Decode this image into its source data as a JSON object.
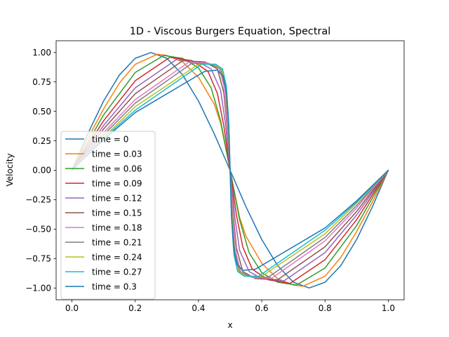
{
  "chart_data": {
    "type": "line",
    "title": "1D - Viscous Burgers Equation, Spectral",
    "xlabel": "x",
    "ylabel": "Velocity",
    "xlim": [
      -0.05,
      1.05
    ],
    "ylim": [
      -1.1,
      1.1
    ],
    "xticks": [
      "0.0",
      "0.2",
      "0.4",
      "0.6",
      "0.8",
      "1.0"
    ],
    "yticks": [
      "−1.00",
      "−0.75",
      "−0.50",
      "−0.25",
      "0.00",
      "0.25",
      "0.50",
      "0.75",
      "1.00"
    ],
    "grid": false,
    "legend_position": "center-left",
    "series": [
      {
        "name": "time = 0",
        "color": "#1f77b4",
        "x": [
          0,
          0.05,
          0.1,
          0.15,
          0.2,
          0.25,
          0.3,
          0.35,
          0.4,
          0.45,
          0.5,
          0.55,
          0.6,
          0.65,
          0.7,
          0.75,
          0.8,
          0.85,
          0.9,
          0.95,
          1
        ],
        "y": [
          0,
          0.309,
          0.588,
          0.809,
          0.951,
          1,
          0.951,
          0.809,
          0.588,
          0.309,
          0,
          -0.309,
          -0.588,
          -0.809,
          -0.951,
          -1,
          -0.951,
          -0.809,
          -0.588,
          -0.309,
          0
        ]
      },
      {
        "name": "time = 0.03",
        "color": "#ff7f0e",
        "x": [
          0,
          0.05,
          0.1,
          0.15,
          0.2,
          0.27,
          0.3,
          0.35,
          0.4,
          0.45,
          0.47,
          0.5,
          0.53,
          0.55,
          0.6,
          0.65,
          0.7,
          0.73,
          0.8,
          0.85,
          0.9,
          0.95,
          1
        ],
        "y": [
          0,
          0.27,
          0.52,
          0.74,
          0.9,
          0.985,
          0.975,
          0.92,
          0.79,
          0.56,
          0.4,
          0,
          -0.4,
          -0.56,
          -0.79,
          -0.92,
          -0.975,
          -0.985,
          -0.9,
          -0.74,
          -0.52,
          -0.27,
          0
        ]
      },
      {
        "name": "time = 0.06",
        "color": "#2ca02c",
        "x": [
          0,
          0.1,
          0.2,
          0.29,
          0.35,
          0.4,
          0.44,
          0.47,
          0.5,
          0.53,
          0.56,
          0.6,
          0.65,
          0.71,
          0.8,
          0.9,
          1
        ],
        "y": [
          0,
          0.47,
          0.83,
          0.975,
          0.95,
          0.87,
          0.7,
          0.42,
          0,
          -0.42,
          -0.7,
          -0.87,
          -0.95,
          -0.975,
          -0.83,
          -0.47,
          0
        ]
      },
      {
        "name": "time = 0.09",
        "color": "#d62728",
        "x": [
          0,
          0.1,
          0.2,
          0.31,
          0.38,
          0.43,
          0.46,
          0.48,
          0.5,
          0.52,
          0.54,
          0.57,
          0.62,
          0.69,
          0.8,
          0.9,
          1
        ],
        "y": [
          0,
          0.42,
          0.76,
          0.96,
          0.93,
          0.84,
          0.65,
          0.38,
          0,
          -0.38,
          -0.65,
          -0.84,
          -0.93,
          -0.96,
          -0.76,
          -0.42,
          0
        ]
      },
      {
        "name": "time = 0.12",
        "color": "#9467bd",
        "x": [
          0,
          0.1,
          0.2,
          0.33,
          0.4,
          0.44,
          0.47,
          0.485,
          0.5,
          0.515,
          0.53,
          0.56,
          0.6,
          0.67,
          0.8,
          0.9,
          1
        ],
        "y": [
          0,
          0.38,
          0.7,
          0.94,
          0.92,
          0.86,
          0.68,
          0.4,
          0,
          -0.4,
          -0.68,
          -0.86,
          -0.92,
          -0.94,
          -0.7,
          -0.38,
          0
        ]
      },
      {
        "name": "time = 0.15",
        "color": "#8c564b",
        "x": [
          0,
          0.1,
          0.2,
          0.35,
          0.42,
          0.46,
          0.48,
          0.49,
          0.5,
          0.51,
          0.52,
          0.54,
          0.58,
          0.65,
          0.8,
          0.9,
          1
        ],
        "y": [
          0,
          0.35,
          0.65,
          0.93,
          0.92,
          0.86,
          0.66,
          0.38,
          0,
          -0.38,
          -0.66,
          -0.86,
          -0.92,
          -0.93,
          -0.65,
          -0.35,
          0
        ]
      },
      {
        "name": "time = 0.18",
        "color": "#e377c2",
        "x": [
          0,
          0.1,
          0.2,
          0.37,
          0.43,
          0.465,
          0.48,
          0.49,
          0.5,
          0.51,
          0.52,
          0.535,
          0.57,
          0.63,
          0.8,
          0.9,
          1
        ],
        "y": [
          0,
          0.32,
          0.6,
          0.92,
          0.91,
          0.87,
          0.72,
          0.42,
          0,
          -0.42,
          -0.72,
          -0.87,
          -0.91,
          -0.92,
          -0.6,
          -0.32,
          0
        ]
      },
      {
        "name": "time = 0.21",
        "color": "#7f7f7f",
        "x": [
          0,
          0.1,
          0.2,
          0.38,
          0.44,
          0.47,
          0.485,
          0.493,
          0.5,
          0.507,
          0.515,
          0.53,
          0.56,
          0.62,
          0.8,
          0.9,
          1
        ],
        "y": [
          0,
          0.3,
          0.57,
          0.91,
          0.9,
          0.86,
          0.7,
          0.4,
          0,
          -0.4,
          -0.7,
          -0.86,
          -0.9,
          -0.91,
          -0.57,
          -0.3,
          0
        ]
      },
      {
        "name": "time = 0.24",
        "color": "#bcbd22",
        "x": [
          0,
          0.1,
          0.2,
          0.4,
          0.45,
          0.473,
          0.487,
          0.494,
          0.5,
          0.506,
          0.513,
          0.527,
          0.55,
          0.6,
          0.8,
          0.9,
          1
        ],
        "y": [
          0,
          0.28,
          0.54,
          0.9,
          0.9,
          0.86,
          0.7,
          0.4,
          0,
          -0.4,
          -0.7,
          -0.86,
          -0.9,
          -0.9,
          -0.54,
          -0.28,
          0
        ]
      },
      {
        "name": "time = 0.27",
        "color": "#17becf",
        "x": [
          0,
          0.1,
          0.2,
          0.41,
          0.455,
          0.476,
          0.488,
          0.495,
          0.5,
          0.505,
          0.512,
          0.524,
          0.545,
          0.59,
          0.8,
          0.9,
          1
        ],
        "y": [
          0,
          0.27,
          0.51,
          0.9,
          0.9,
          0.86,
          0.72,
          0.42,
          0,
          -0.42,
          -0.72,
          -0.86,
          -0.9,
          -0.9,
          -0.51,
          -0.27,
          0
        ]
      },
      {
        "name": "time = 0.3",
        "color": "#1f77b4",
        "x": [
          0,
          0.1,
          0.2,
          0.42,
          0.46,
          0.478,
          0.489,
          0.496,
          0.5,
          0.504,
          0.511,
          0.522,
          0.54,
          0.58,
          0.8,
          0.9,
          1
        ],
        "y": [
          0,
          0.26,
          0.49,
          0.84,
          0.85,
          0.8,
          0.65,
          0.38,
          0,
          -0.38,
          -0.65,
          -0.8,
          -0.85,
          -0.84,
          -0.49,
          -0.26,
          0
        ]
      }
    ]
  }
}
